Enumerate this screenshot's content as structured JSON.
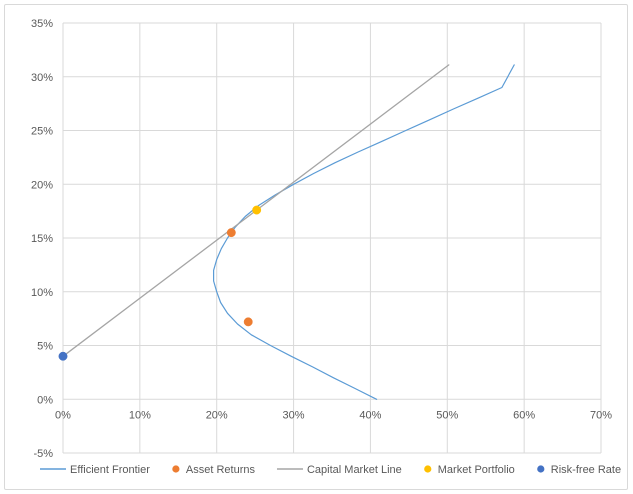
{
  "chart_data": {
    "type": "scatter",
    "title": "",
    "xlabel": "",
    "ylabel": "",
    "xlim": [
      0,
      0.7
    ],
    "ylim": [
      -0.05,
      0.35
    ],
    "x_ticks": [
      "0%",
      "10%",
      "20%",
      "30%",
      "40%",
      "50%",
      "60%",
      "70%"
    ],
    "y_ticks": [
      "-5%",
      "0%",
      "5%",
      "10%",
      "15%",
      "20%",
      "25%",
      "30%",
      "35%"
    ],
    "grid": true,
    "legend_position": "bottom",
    "series": [
      {
        "name": "Efficient Frontier",
        "kind": "line",
        "color": "#5b9bd5",
        "points": [
          [
            0.408,
            0.0
          ],
          [
            0.38,
            0.01
          ],
          [
            0.352,
            0.02
          ],
          [
            0.325,
            0.03
          ],
          [
            0.297,
            0.04
          ],
          [
            0.27,
            0.05
          ],
          [
            0.245,
            0.06
          ],
          [
            0.227,
            0.07
          ],
          [
            0.214,
            0.08
          ],
          [
            0.205,
            0.09
          ],
          [
            0.2,
            0.1
          ],
          [
            0.196,
            0.11
          ],
          [
            0.196,
            0.12
          ],
          [
            0.2,
            0.13
          ],
          [
            0.206,
            0.14
          ],
          [
            0.214,
            0.15
          ],
          [
            0.224,
            0.16
          ],
          [
            0.237,
            0.17
          ],
          [
            0.254,
            0.18
          ],
          [
            0.276,
            0.19
          ],
          [
            0.3,
            0.2
          ],
          [
            0.326,
            0.21
          ],
          [
            0.354,
            0.22
          ],
          [
            0.384,
            0.23
          ],
          [
            0.415,
            0.24
          ],
          [
            0.446,
            0.25
          ],
          [
            0.477,
            0.26
          ],
          [
            0.508,
            0.27
          ],
          [
            0.54,
            0.28
          ],
          [
            0.571,
            0.29
          ],
          [
            0.587,
            0.311
          ]
        ]
      },
      {
        "name": "Asset Returns",
        "kind": "marker",
        "color": "#ed7d31",
        "points": [
          [
            0.219,
            0.155
          ],
          [
            0.241,
            0.072
          ]
        ]
      },
      {
        "name": "Capital Market Line",
        "kind": "line",
        "color": "#a5a5a5",
        "points": [
          [
            0.0,
            0.04
          ],
          [
            0.502,
            0.311
          ]
        ]
      },
      {
        "name": "Market Portfolio",
        "kind": "marker",
        "color": "#ffc000",
        "points": [
          [
            0.252,
            0.176
          ]
        ]
      },
      {
        "name": "Risk-free Rate",
        "kind": "marker",
        "color": "#4472c4",
        "points": [
          [
            0.0,
            0.04
          ]
        ]
      }
    ]
  }
}
